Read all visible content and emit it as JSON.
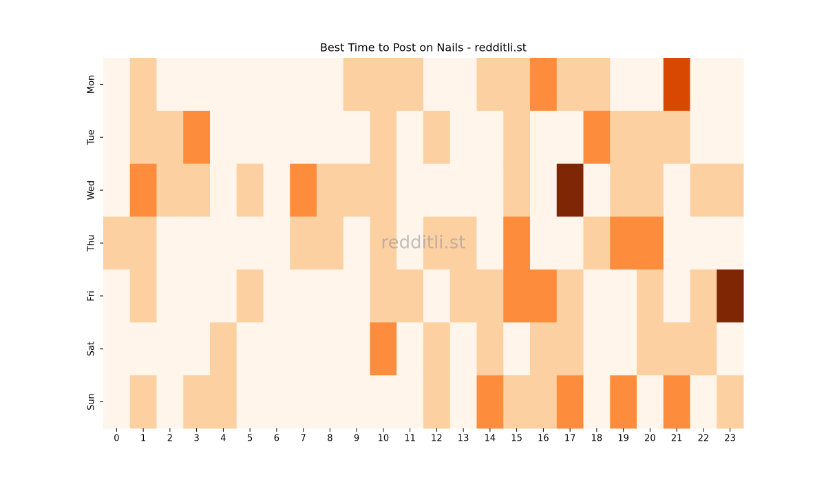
{
  "chart_data": {
    "type": "heatmap",
    "title": "Best Time to Post on Nails - redditli.st",
    "watermark": "redditli.st",
    "x": [
      0,
      1,
      2,
      3,
      4,
      5,
      6,
      7,
      8,
      9,
      10,
      11,
      12,
      13,
      14,
      15,
      16,
      17,
      18,
      19,
      20,
      21,
      22,
      23
    ],
    "y": [
      "Mon",
      "Tue",
      "Wed",
      "Thu",
      "Fri",
      "Sat",
      "Sun"
    ],
    "values": [
      [
        0,
        1,
        0,
        0,
        0,
        0,
        0,
        0,
        0,
        1,
        1,
        1,
        0,
        0,
        1,
        1,
        2,
        1,
        1,
        0,
        0,
        3,
        0,
        0
      ],
      [
        0,
        1,
        1,
        2,
        0,
        0,
        0,
        0,
        0,
        0,
        1,
        0,
        1,
        0,
        0,
        1,
        0,
        0,
        2,
        1,
        1,
        1,
        0,
        0
      ],
      [
        0,
        2,
        1,
        1,
        0,
        1,
        0,
        2,
        1,
        1,
        1,
        0,
        0,
        0,
        0,
        1,
        0,
        4,
        0,
        1,
        1,
        0,
        1,
        1
      ],
      [
        1,
        1,
        0,
        0,
        0,
        0,
        0,
        1,
        1,
        0,
        1,
        0,
        1,
        1,
        0,
        2,
        0,
        0,
        1,
        2,
        2,
        0,
        0,
        0
      ],
      [
        0,
        1,
        0,
        0,
        0,
        1,
        0,
        0,
        0,
        0,
        1,
        1,
        0,
        1,
        1,
        2,
        2,
        1,
        0,
        0,
        1,
        0,
        1,
        4
      ],
      [
        0,
        0,
        0,
        0,
        1,
        0,
        0,
        0,
        0,
        0,
        2,
        0,
        1,
        0,
        1,
        0,
        1,
        1,
        0,
        0,
        1,
        1,
        1,
        0
      ],
      [
        0,
        1,
        0,
        1,
        1,
        0,
        0,
        0,
        0,
        0,
        0,
        0,
        1,
        0,
        2,
        1,
        1,
        2,
        0,
        2,
        0,
        2,
        0,
        1
      ]
    ],
    "colors": [
      "#fff5eb",
      "#fdd0a2",
      "#fd8d3c",
      "#d94801",
      "#7f2704"
    ]
  }
}
